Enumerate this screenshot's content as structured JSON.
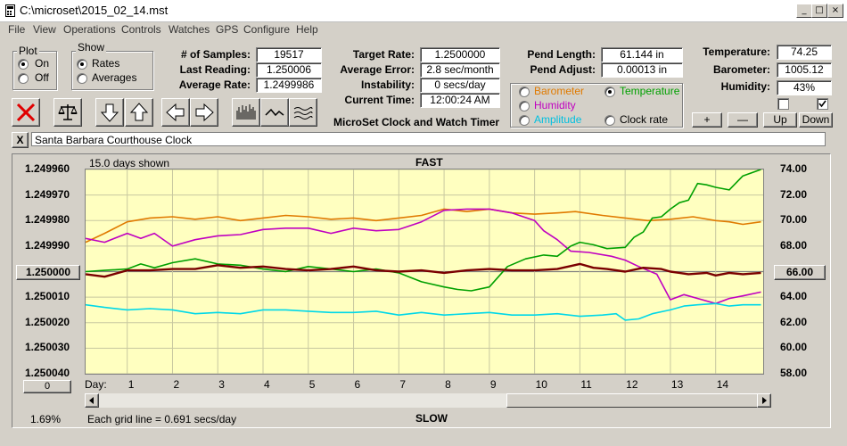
{
  "window": {
    "title": "C:\\microset\\2015_02_14.mst"
  },
  "menu": [
    "File",
    "View",
    "Operations",
    "Controls",
    "Watches",
    "GPS",
    "Configure",
    "Help"
  ],
  "plot_group": {
    "label": "Plot",
    "on": "On",
    "off": "Off",
    "selected": "On"
  },
  "show_group": {
    "label": "Show",
    "rates": "Rates",
    "averages": "Averages",
    "selected": "Rates"
  },
  "stats": {
    "samples_label": "# of Samples:",
    "samples": "19517",
    "last_label": "Last Reading:",
    "last": "1.250006",
    "avg_label": "Average Rate:",
    "avg": "1.2499986"
  },
  "rates": {
    "target_label": "Target Rate:",
    "target": "1.2500000",
    "avgerr_label": "Average Error:",
    "avgerr": "2.8 sec/month",
    "instab_label": "Instability:",
    "instab": "0 secs/day",
    "time_label": "Current Time:",
    "time": "12:00:24 AM",
    "app_name": "MicroSet Clock and Watch Timer"
  },
  "pend": {
    "length_label": "Pend Length:",
    "length": "61.144 in",
    "adjust_label": "Pend Adjust:",
    "adjust": "0.00013 in"
  },
  "env": {
    "temp_label": "Temperature:",
    "temp": "74.25",
    "baro_label": "Barometer:",
    "baro": "1005.12",
    "hum_label": "Humidity:",
    "hum": "43%"
  },
  "aux_group": {
    "barometer": "Barometer",
    "temperature": "Temperature",
    "humidity": "Humidity",
    "amplitude": "Amplitude",
    "clockrate": "Clock rate",
    "selected": "Temperature",
    "colors": {
      "barometer": "#e07a00",
      "temperature": "#00a000",
      "humidity": "#c000c0",
      "amplitude": "#00c0e0",
      "clockrate": "#000000"
    }
  },
  "aux_buttons": {
    "plus": "+",
    "minus": "—",
    "up": "Up",
    "down": "Down"
  },
  "clock_close": "X",
  "clock_name": "Santa Barbara Courthouse Clock",
  "chart_header": {
    "shown": "15.0 days shown",
    "fast": "FAST",
    "slow": "SLOW",
    "grid_note": "Each grid line = 0.691 secs/day",
    "pct": "1.69%",
    "center_left": "1.250000",
    "center_right": "66.00",
    "zero": "0",
    "day_label": "Day:"
  },
  "chart_data": {
    "type": "line",
    "x_label": "Day:",
    "x_ticks": [
      1,
      2,
      3,
      4,
      5,
      6,
      7,
      8,
      9,
      10,
      11,
      12,
      13,
      14
    ],
    "xlim": [
      0.08,
      15.05
    ],
    "y_left_ticks": [
      "1.249960",
      "1.249970",
      "1.249980",
      "1.249990",
      "1.250000",
      "1.250010",
      "1.250020",
      "1.250030",
      "1.250040"
    ],
    "y_left_range": [
      1.24996,
      1.25004
    ],
    "y_right_ticks": [
      "74.00",
      "72.00",
      "70.00",
      "68.00",
      "66.00",
      "64.00",
      "62.00",
      "60.00",
      "58.00"
    ],
    "y_right_range": [
      74,
      58
    ],
    "grid": "on",
    "series": [
      {
        "color": "#e07a00",
        "axis": "right",
        "x": [
          0.08,
          0.5,
          1,
          1.5,
          2,
          2.5,
          3,
          3.5,
          4,
          4.5,
          5,
          5.5,
          6,
          6.5,
          7,
          7.5,
          8,
          8.5,
          9,
          9.5,
          10,
          10.5,
          10.9,
          11.5,
          12,
          12.5,
          13,
          13.5,
          14,
          14.3,
          14.6,
          15
        ],
        "y": [
          68.3,
          69.0,
          69.9,
          70.2,
          70.3,
          70.1,
          70.3,
          70.0,
          70.2,
          70.4,
          70.3,
          70.1,
          70.2,
          70.0,
          70.2,
          70.4,
          70.9,
          70.7,
          70.9,
          70.6,
          70.5,
          70.6,
          70.7,
          70.4,
          70.2,
          70.0,
          70.1,
          70.3,
          70.0,
          69.9,
          69.7,
          69.9
        ]
      },
      {
        "color": "#c000c0",
        "axis": "right",
        "x": [
          0.08,
          0.5,
          1,
          1.3,
          1.6,
          2,
          2.5,
          3,
          3.5,
          4,
          4.5,
          5,
          5.5,
          6,
          6.5,
          7,
          7.5,
          8,
          8.5,
          9,
          9.5,
          10,
          10.2,
          10.5,
          10.8,
          11.2,
          11.7,
          12,
          12.3,
          12.7,
          13,
          13.3,
          13.7,
          14,
          14.3,
          14.6,
          15
        ],
        "y": [
          68.6,
          68.3,
          69.0,
          68.6,
          69.0,
          68.0,
          68.5,
          68.8,
          68.9,
          69.3,
          69.4,
          69.4,
          69.0,
          69.4,
          69.2,
          69.3,
          69.9,
          70.8,
          70.9,
          70.9,
          70.6,
          70.0,
          69.2,
          68.5,
          67.6,
          67.5,
          67.2,
          66.9,
          66.4,
          65.8,
          63.8,
          64.2,
          63.8,
          63.5,
          63.9,
          64.1,
          64.4
        ]
      },
      {
        "color": "#00a000",
        "axis": "right",
        "x": [
          0.08,
          0.5,
          1,
          1.3,
          1.6,
          2,
          2.5,
          3,
          3.5,
          4,
          4.5,
          5,
          5.5,
          6,
          6.5,
          7,
          7.5,
          8,
          8.3,
          8.6,
          9,
          9.4,
          9.8,
          10.2,
          10.5,
          10.8,
          11,
          11.3,
          11.6,
          12,
          12.2,
          12.4,
          12.6,
          12.8,
          13,
          13.2,
          13.4,
          13.6,
          13.8,
          14,
          14.3,
          14.6,
          15
        ],
        "y": [
          66.0,
          66.1,
          66.2,
          66.6,
          66.3,
          66.7,
          67.0,
          66.6,
          66.5,
          66.2,
          66.0,
          66.4,
          66.2,
          66.0,
          66.2,
          65.9,
          65.2,
          64.8,
          64.6,
          64.5,
          64.8,
          66.4,
          67.0,
          67.3,
          67.2,
          68.0,
          68.3,
          68.1,
          67.8,
          67.9,
          68.7,
          69.1,
          70.2,
          70.3,
          70.9,
          71.4,
          71.6,
          72.9,
          72.8,
          72.6,
          72.4,
          73.5,
          74.0
        ]
      },
      {
        "color": "#00d8e8",
        "axis": "right",
        "x": [
          0.08,
          0.5,
          1,
          1.5,
          2,
          2.5,
          3,
          3.5,
          4,
          4.5,
          5,
          5.5,
          6,
          6.5,
          7,
          7.5,
          8,
          8.5,
          9,
          9.5,
          10,
          10.5,
          11,
          11.5,
          11.8,
          12,
          12.3,
          12.6,
          13,
          13.3,
          13.6,
          14,
          14.3,
          14.6,
          15
        ],
        "y": [
          63.4,
          63.2,
          63.0,
          63.1,
          63.0,
          62.7,
          62.8,
          62.7,
          63.0,
          63.0,
          62.9,
          62.8,
          62.8,
          62.9,
          62.6,
          62.8,
          62.6,
          62.7,
          62.8,
          62.6,
          62.6,
          62.7,
          62.5,
          62.6,
          62.7,
          62.2,
          62.3,
          62.7,
          63.0,
          63.3,
          63.4,
          63.5,
          63.3,
          63.4,
          63.4
        ]
      },
      {
        "color": "#7a0000",
        "axis": "left",
        "x": [
          0.08,
          0.5,
          1,
          1.5,
          2,
          2.5,
          3,
          3.5,
          4,
          4.5,
          5,
          5.5,
          6,
          6.5,
          7,
          7.5,
          8,
          8.5,
          9,
          9.5,
          10,
          10.5,
          11,
          11.3,
          11.6,
          12,
          12.4,
          12.8,
          13,
          13.4,
          13.8,
          14,
          14.3,
          14.6,
          15
        ],
        "y": [
          1.250001,
          1.250002,
          1.2499995,
          1.2499995,
          1.249999,
          1.249999,
          1.2499975,
          1.2499985,
          1.249998,
          1.249999,
          1.2499995,
          1.249999,
          1.249998,
          1.2499995,
          1.25,
          1.2499995,
          1.2500005,
          1.2499995,
          1.249999,
          1.2499995,
          1.2499995,
          1.249999,
          1.249997,
          1.2499985,
          1.249999,
          1.25,
          1.2499985,
          1.249999,
          1.25,
          1.250001,
          1.2500005,
          1.2500015,
          1.2500005,
          1.250001,
          1.2500005
        ]
      }
    ]
  }
}
